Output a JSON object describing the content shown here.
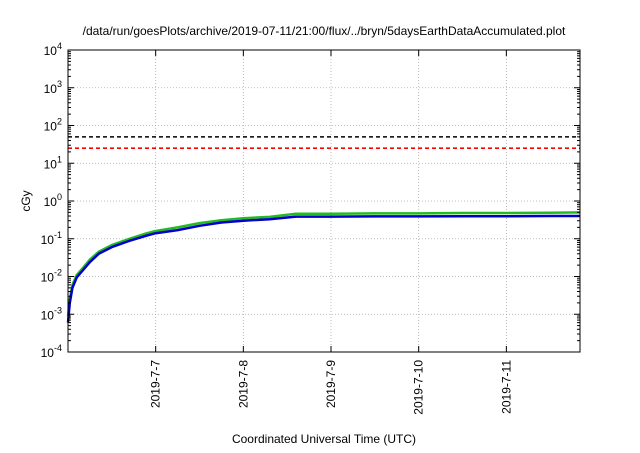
{
  "chart_data": {
    "type": "line",
    "title": "/data/run/goesPlots/archive/2019-07-11/21:00/flux/../bryn/5daysEarthDataAccumulated.plot",
    "xlabel": "Coordinated Universal Time (UTC)",
    "ylabel": "cGy",
    "yscale": "log",
    "ylim": [
      0.0001,
      10000
    ],
    "xlim_days": [
      0,
      5.84
    ],
    "grid": true,
    "y_ticks": [
      {
        "base": "10",
        "exp": "-4",
        "value": 0.0001
      },
      {
        "base": "10",
        "exp": "-3",
        "value": 0.001
      },
      {
        "base": "10",
        "exp": "-2",
        "value": 0.01
      },
      {
        "base": "10",
        "exp": "-1",
        "value": 0.1
      },
      {
        "base": "10",
        "exp": "0",
        "value": 1
      },
      {
        "base": "10",
        "exp": "1",
        "value": 10
      },
      {
        "base": "10",
        "exp": "2",
        "value": 100
      },
      {
        "base": "10",
        "exp": "3",
        "value": 1000
      },
      {
        "base": "10",
        "exp": "4",
        "value": 10000
      }
    ],
    "x_ticks": [
      {
        "label": "2019-7-7",
        "day": 1
      },
      {
        "label": "2019-7-8",
        "day": 2
      },
      {
        "label": "2019-7-9",
        "day": 3
      },
      {
        "label": "2019-7-10",
        "day": 4
      },
      {
        "label": "2019-7-11",
        "day": 5
      }
    ],
    "thresholds": [
      {
        "value": 50,
        "color": "#000000",
        "dash": "4,3"
      },
      {
        "value": 25,
        "color": "#ff0000",
        "dash": "4,3"
      }
    ],
    "series": [
      {
        "color": "#22bb22",
        "width": 2.5,
        "x": [
          0,
          0.02,
          0.05,
          0.1,
          0.15,
          0.25,
          0.35,
          0.5,
          0.7,
          0.9,
          1.0,
          1.25,
          1.5,
          1.75,
          2.0,
          2.3,
          2.6,
          3.0,
          3.5,
          4.0,
          4.5,
          5.0,
          5.5,
          5.84
        ],
        "y": [
          0.0009,
          0.0025,
          0.006,
          0.011,
          0.015,
          0.028,
          0.045,
          0.068,
          0.1,
          0.14,
          0.16,
          0.2,
          0.26,
          0.31,
          0.35,
          0.38,
          0.46,
          0.46,
          0.47,
          0.47,
          0.48,
          0.48,
          0.49,
          0.5
        ]
      },
      {
        "color": "#0000cc",
        "width": 2.5,
        "x": [
          0,
          0.02,
          0.05,
          0.1,
          0.15,
          0.25,
          0.35,
          0.5,
          0.7,
          0.9,
          1.0,
          1.25,
          1.5,
          1.75,
          2.0,
          2.3,
          2.6,
          3.0,
          3.5,
          4.0,
          4.5,
          5.0,
          5.5,
          5.84
        ],
        "y": [
          0.0006,
          0.002,
          0.005,
          0.0095,
          0.013,
          0.024,
          0.04,
          0.06,
          0.088,
          0.122,
          0.14,
          0.17,
          0.22,
          0.27,
          0.3,
          0.33,
          0.385,
          0.385,
          0.39,
          0.39,
          0.395,
          0.395,
          0.4,
          0.4
        ]
      }
    ]
  }
}
